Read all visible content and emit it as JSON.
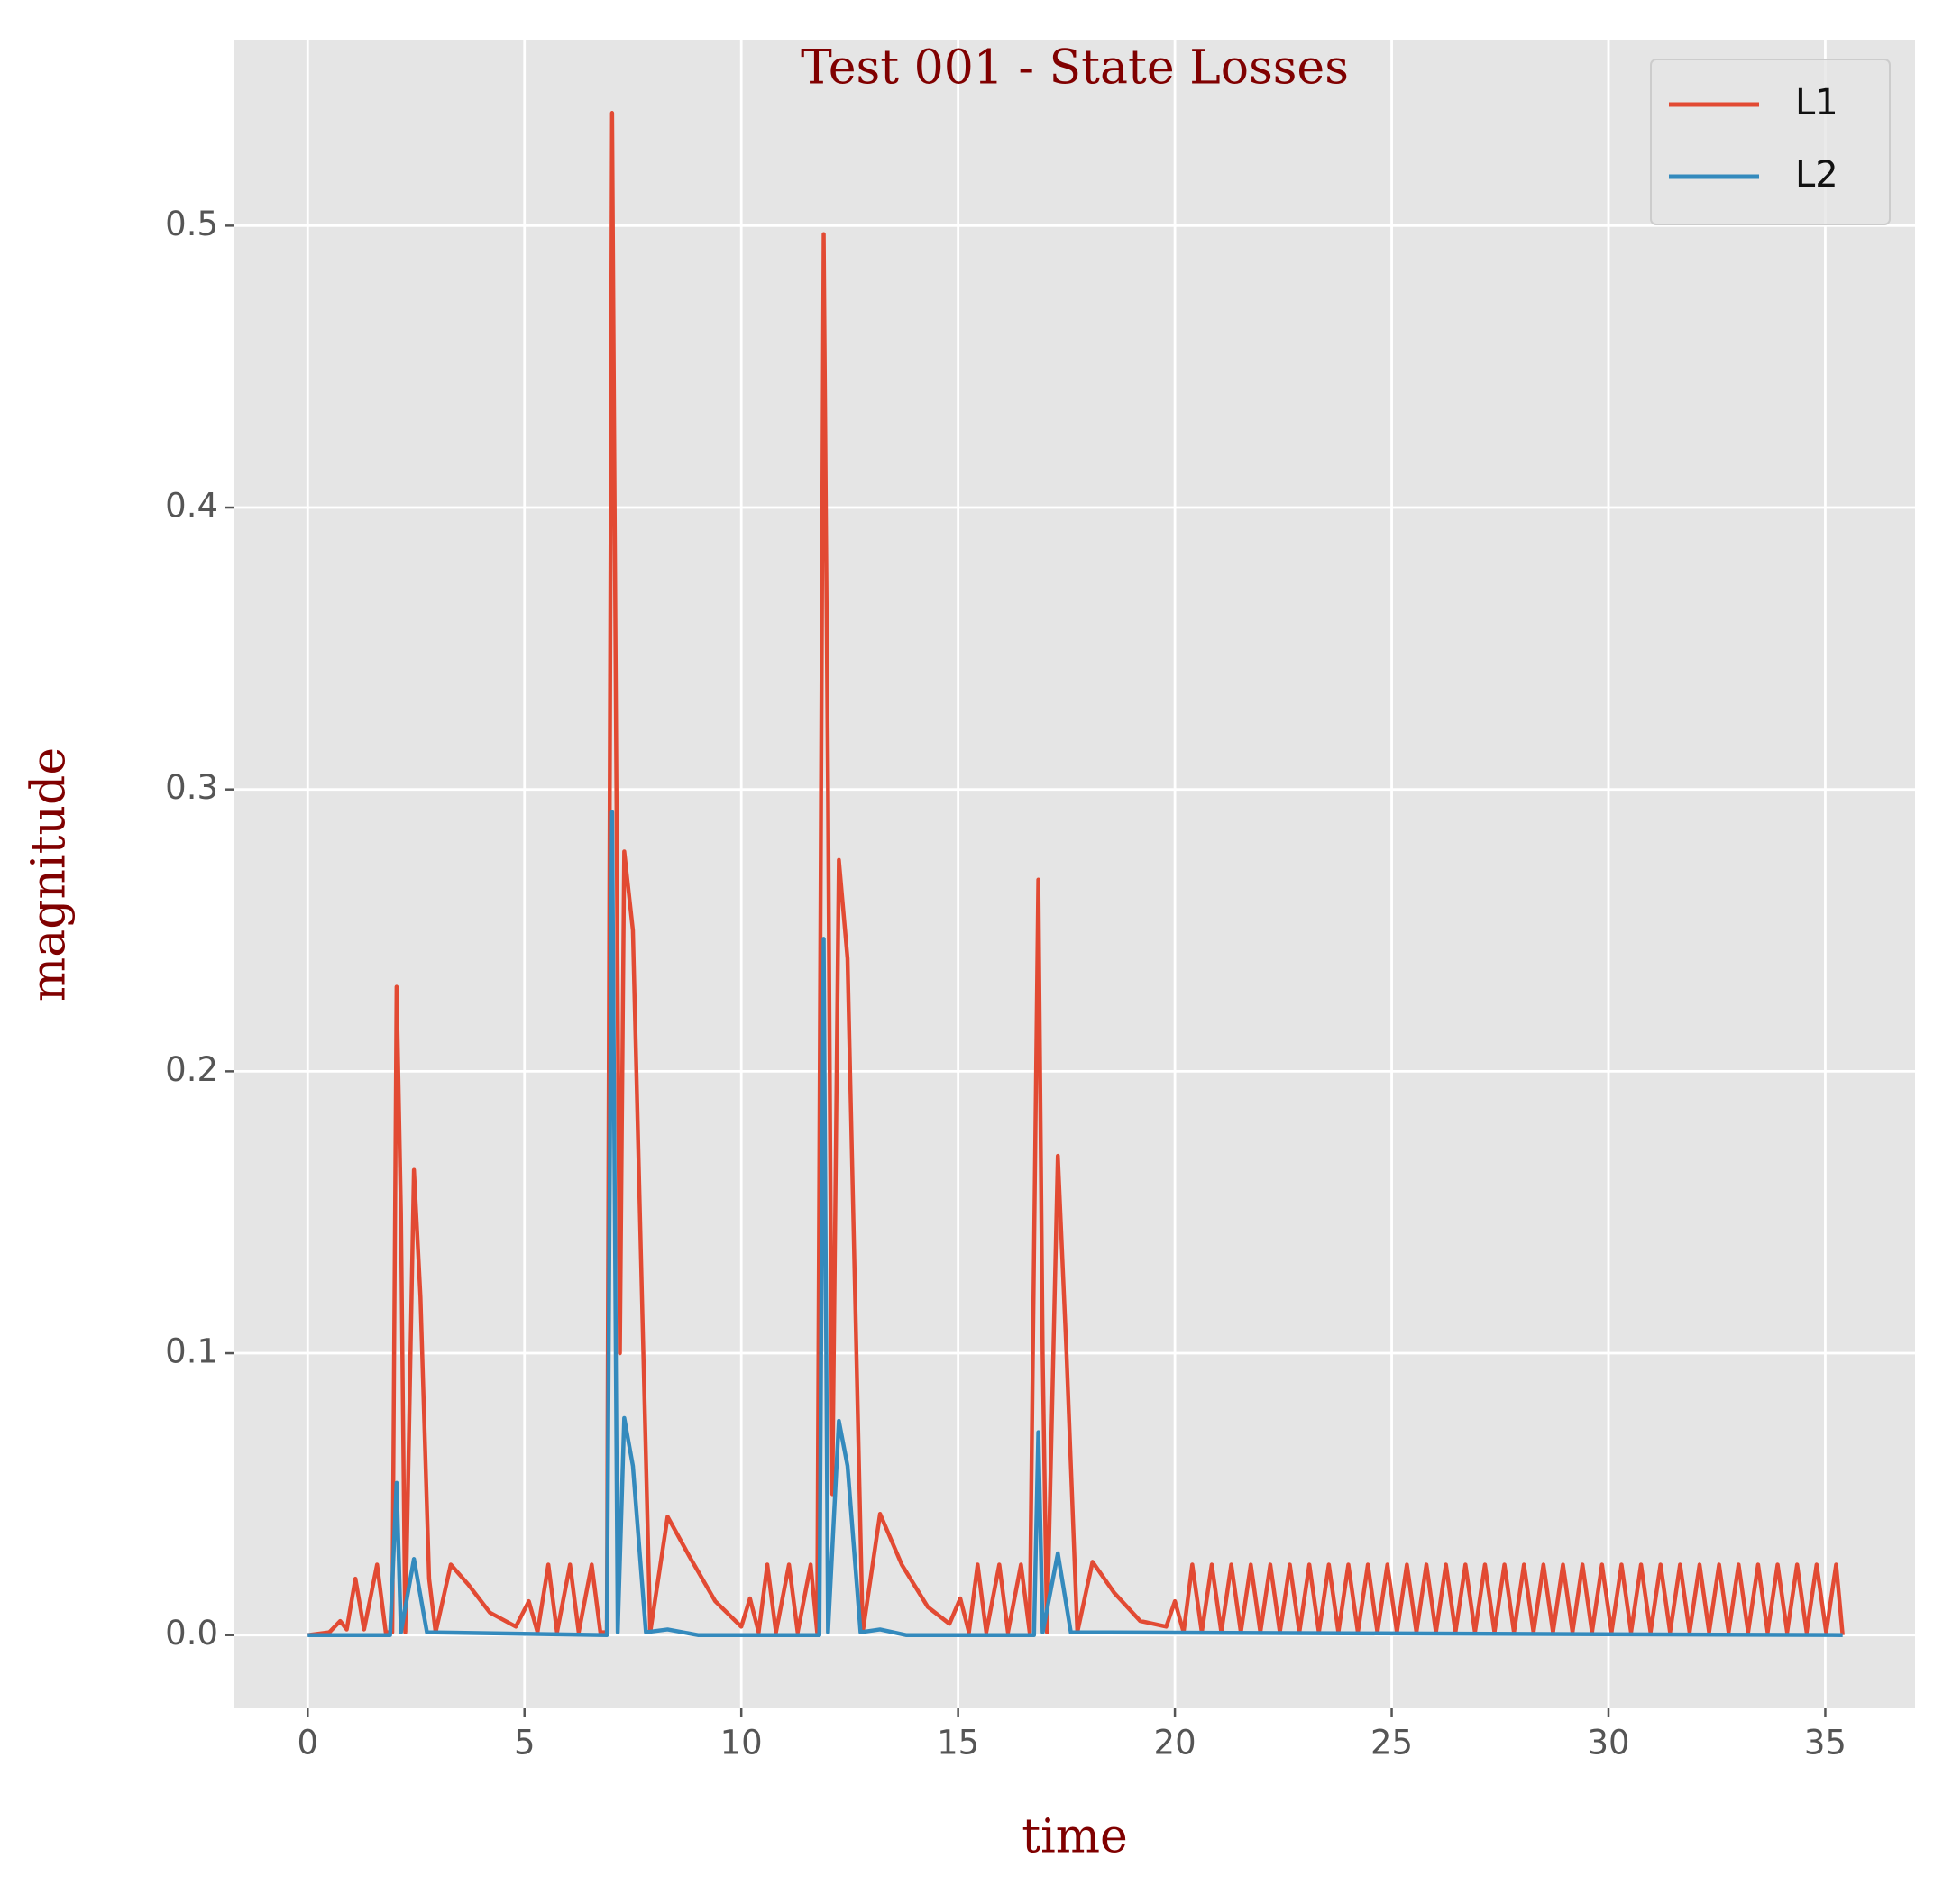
{
  "chart_data": {
    "type": "line",
    "title": "Test 001 - State Losses",
    "x_label": "time",
    "y_label": "magnitude",
    "xlim": [
      -1.69,
      37.07
    ],
    "ylim": [
      -0.026,
      0.566
    ],
    "xticks": [
      0,
      5,
      10,
      15,
      20,
      25,
      30,
      35
    ],
    "yticks": [
      {
        "value": 0,
        "label": "0.0"
      },
      0.1,
      0.2,
      0.3,
      0.4,
      0.5
    ],
    "grid": true,
    "legend": "upper right",
    "series": [
      {
        "name": "L1",
        "color": "#E24A33",
        "x": [
          0,
          0.5,
          0.75,
          0.9,
          1.1,
          1.3,
          1.6,
          1.8,
          1.95,
          2.05,
          2.15,
          2.25,
          2.45,
          2.6,
          2.8,
          2.95,
          3.3,
          3.7,
          4.2,
          4.8,
          5.1,
          5.3,
          5.55,
          5.75,
          6.05,
          6.25,
          6.55,
          6.75,
          6.9,
          7.02,
          7.12,
          7.2,
          7.3,
          7.5,
          7.9,
          8.3,
          8.8,
          9.4,
          10.0,
          10.2,
          10.4,
          10.6,
          10.8,
          11.1,
          11.3,
          11.6,
          11.75,
          11.9,
          12.0,
          12.1,
          12.25,
          12.45,
          12.8,
          13.2,
          13.7,
          14.3,
          14.8,
          15.05,
          15.25,
          15.45,
          15.65,
          15.95,
          16.15,
          16.45,
          16.65,
          16.85,
          16.95,
          17.05,
          17.3,
          17.5,
          17.75,
          18.1,
          18.6,
          19.2,
          19.8,
          20.0,
          20.2,
          20.4,
          20.62,
          20.85,
          21.07,
          21.3,
          21.52,
          21.75,
          21.97,
          22.2,
          22.42,
          22.65,
          22.87,
          23.1,
          23.32,
          23.55,
          23.77,
          24.0,
          24.22,
          24.45,
          24.67,
          24.9,
          25.12,
          25.35,
          25.57,
          25.8,
          26.02,
          26.25,
          26.47,
          26.7,
          26.92,
          27.15,
          27.37,
          27.6,
          27.82,
          28.05,
          28.27,
          28.5,
          28.72,
          28.95,
          29.17,
          29.4,
          29.62,
          29.85,
          30.07,
          30.3,
          30.52,
          30.75,
          30.97,
          31.2,
          31.42,
          31.65,
          31.87,
          32.1,
          32.32,
          32.55,
          32.77,
          33.0,
          33.22,
          33.45,
          33.67,
          33.9,
          34.12,
          34.35,
          34.57,
          34.8,
          35.02,
          35.25,
          35.4
        ],
        "values": [
          0,
          0.001,
          0.005,
          0.002,
          0.02,
          0.002,
          0.025,
          0.001,
          0.001,
          0.23,
          0.15,
          0.001,
          0.165,
          0.12,
          0.02,
          0.001,
          0.025,
          0.018,
          0.008,
          0.003,
          0.012,
          0.001,
          0.025,
          0.001,
          0.025,
          0.001,
          0.025,
          0.001,
          0.001,
          0.54,
          0.3,
          0.1,
          0.278,
          0.25,
          0.001,
          0.042,
          0.028,
          0.012,
          0.003,
          0.013,
          0.001,
          0.025,
          0.001,
          0.025,
          0.001,
          0.025,
          0.001,
          0.497,
          0.3,
          0.05,
          0.275,
          0.24,
          0.001,
          0.043,
          0.025,
          0.01,
          0.004,
          0.013,
          0.001,
          0.025,
          0.001,
          0.025,
          0.001,
          0.025,
          0.001,
          0.268,
          0.1,
          0.001,
          0.17,
          0.1,
          0.001,
          0.026,
          0.015,
          0.005,
          0.003,
          0.012,
          0.001,
          0.025,
          0.001,
          0.025,
          0.001,
          0.025,
          0.001,
          0.025,
          0.001,
          0.025,
          0.001,
          0.025,
          0.001,
          0.025,
          0.001,
          0.025,
          0.001,
          0.025,
          0.001,
          0.025,
          0.001,
          0.025,
          0.001,
          0.025,
          0.001,
          0.025,
          0.001,
          0.025,
          0.001,
          0.025,
          0.001,
          0.025,
          0.001,
          0.025,
          0.001,
          0.025,
          0.001,
          0.025,
          0.001,
          0.025,
          0.001,
          0.025,
          0.001,
          0.025,
          0.001,
          0.025,
          0.001,
          0.025,
          0.001,
          0.025,
          0.001,
          0.025,
          0.001,
          0.025,
          0.001,
          0.025,
          0.001,
          0.025,
          0.001,
          0.025,
          0.001,
          0.025,
          0.001,
          0.025,
          0.001,
          0.025,
          0.001,
          0.025,
          0
        ]
      },
      {
        "name": "L2",
        "color": "#348ABD",
        "x": [
          0,
          1.9,
          2.05,
          2.15,
          2.45,
          2.75,
          6.9,
          7.02,
          7.15,
          7.3,
          7.5,
          7.8,
          8.3,
          9.0,
          11.8,
          11.9,
          12.0,
          12.25,
          12.45,
          12.75,
          13.2,
          13.8,
          16.75,
          16.85,
          16.95,
          17.3,
          17.6,
          35.4
        ],
        "values": [
          0,
          0,
          0.054,
          0.001,
          0.027,
          0.001,
          0,
          0.292,
          0.001,
          0.077,
          0.06,
          0.001,
          0.002,
          0,
          0,
          0.247,
          0.001,
          0.076,
          0.06,
          0.001,
          0.002,
          0,
          0,
          0.072,
          0.001,
          0.029,
          0.001,
          0
        ]
      }
    ]
  }
}
